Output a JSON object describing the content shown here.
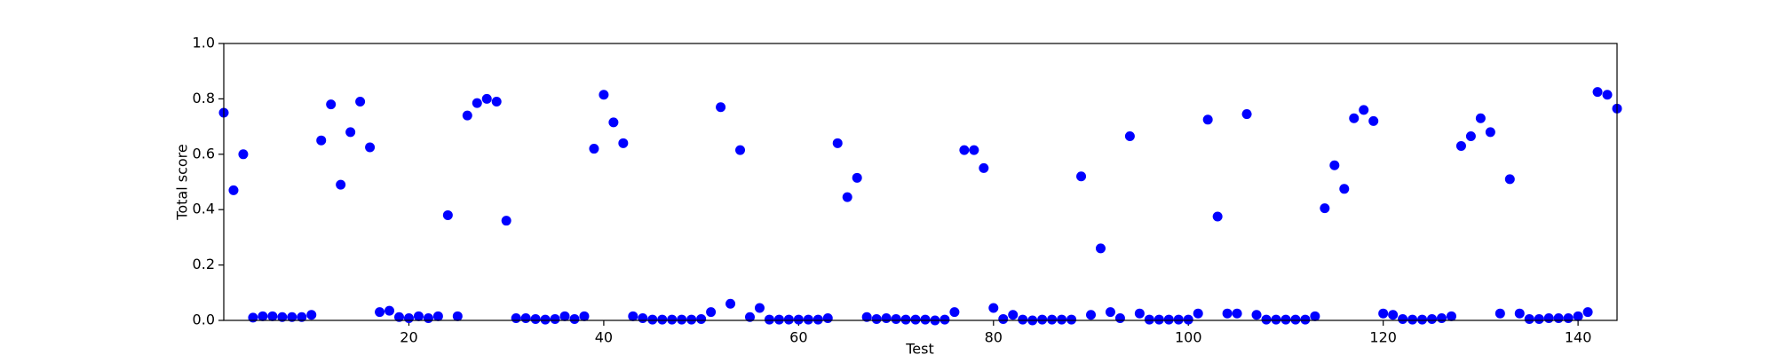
{
  "chart_data": {
    "type": "scatter",
    "x_label": "Test",
    "y_label": "Total score",
    "color": "#0000ff",
    "x": [
      1,
      2,
      3,
      4,
      5,
      6,
      7,
      8,
      9,
      10,
      11,
      12,
      13,
      14,
      15,
      16,
      17,
      18,
      19,
      20,
      21,
      22,
      23,
      24,
      25,
      26,
      27,
      28,
      29,
      30,
      31,
      32,
      33,
      34,
      35,
      36,
      37,
      38,
      39,
      40,
      41,
      42,
      43,
      44,
      45,
      46,
      47,
      48,
      49,
      50,
      51,
      52,
      53,
      54,
      55,
      56,
      57,
      58,
      59,
      60,
      61,
      62,
      63,
      64,
      65,
      66,
      67,
      68,
      69,
      70,
      71,
      72,
      73,
      74,
      75,
      76,
      77,
      78,
      79,
      80,
      81,
      82,
      83,
      84,
      85,
      86,
      87,
      88,
      89,
      90,
      91,
      92,
      93,
      94,
      95,
      96,
      97,
      98,
      99,
      100,
      101,
      102,
      103,
      104,
      105,
      106,
      107,
      108,
      109,
      110,
      111,
      112,
      113,
      114,
      115,
      116,
      117,
      118,
      119,
      120,
      121,
      122,
      123,
      124,
      125,
      126,
      127,
      128,
      129,
      130,
      131,
      132,
      133,
      134,
      135,
      136,
      137,
      138,
      139,
      140,
      141,
      142,
      143,
      144
    ],
    "values": [
      0.75,
      0.47,
      0.6,
      0.01,
      0.015,
      0.015,
      0.012,
      0.012,
      0.012,
      0.02,
      0.65,
      0.78,
      0.49,
      0.68,
      0.79,
      0.625,
      0.03,
      0.035,
      0.012,
      0.008,
      0.015,
      0.008,
      0.015,
      0.38,
      0.015,
      0.74,
      0.785,
      0.8,
      0.79,
      0.36,
      0.008,
      0.008,
      0.005,
      0.003,
      0.005,
      0.015,
      0.005,
      0.015,
      0.62,
      0.815,
      0.715,
      0.64,
      0.015,
      0.008,
      0.003,
      0.003,
      0.003,
      0.003,
      0.003,
      0.005,
      0.03,
      0.77,
      0.06,
      0.615,
      0.012,
      0.045,
      0.003,
      0.003,
      0.003,
      0.003,
      0.003,
      0.003,
      0.008,
      0.64,
      0.445,
      0.515,
      0.012,
      0.005,
      0.008,
      0.005,
      0.003,
      0.003,
      0.003,
      0.0,
      0.003,
      0.03,
      0.615,
      0.615,
      0.55,
      0.045,
      0.005,
      0.02,
      0.003,
      0.0,
      0.003,
      0.003,
      0.003,
      0.003,
      0.52,
      0.02,
      0.26,
      0.03,
      0.008,
      0.665,
      0.025,
      0.003,
      0.003,
      0.003,
      0.003,
      0.003,
      0.025,
      0.725,
      0.375,
      0.025,
      0.025,
      0.745,
      0.02,
      0.003,
      0.003,
      0.003,
      0.003,
      0.003,
      0.015,
      0.405,
      0.56,
      0.475,
      0.73,
      0.76,
      0.72,
      0.025,
      0.02,
      0.005,
      0.003,
      0.003,
      0.005,
      0.008,
      0.015,
      0.63,
      0.665,
      0.73,
      0.68,
      0.025,
      0.51,
      0.025,
      0.005,
      0.005,
      0.008,
      0.008,
      0.008,
      0.015,
      0.03,
      0.825,
      0.815,
      0.765
    ],
    "xlim": [
      1,
      144
    ],
    "xticks": [
      20,
      40,
      60,
      80,
      100,
      120,
      140
    ],
    "ylim": [
      0,
      1
    ],
    "yticks": [
      {
        "value": 0,
        "label": "0.0"
      },
      0.2,
      0.4,
      0.6,
      0.8,
      {
        "value": 1,
        "label": "1.0"
      }
    ]
  }
}
